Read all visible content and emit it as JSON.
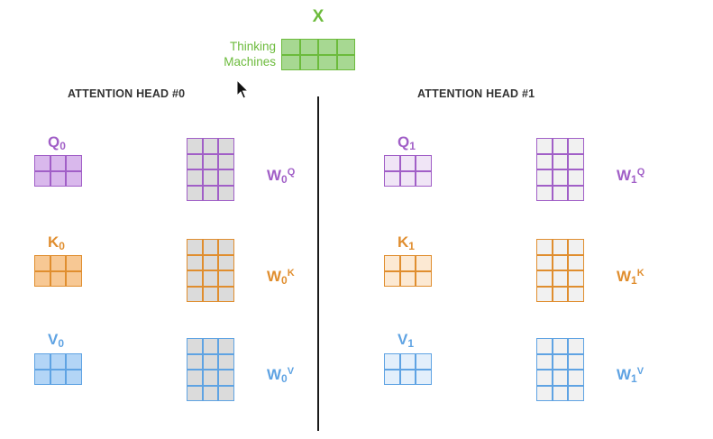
{
  "input": {
    "label": "X",
    "words": [
      "Thinking",
      "Machines"
    ],
    "color": "#6cbb3c",
    "fill": "#a7d892",
    "rows": 2,
    "cols": 4
  },
  "heads": [
    {
      "title": "ATTENTION HEAD #0",
      "index": "0",
      "weight_fill": "#dbdbdb",
      "outputs": [
        {
          "letter": "Q",
          "fill": "#d9b8ec",
          "color": "#a15fc7",
          "weight_sup": "Q"
        },
        {
          "letter": "K",
          "fill": "#f7c894",
          "color": "#e08e2f",
          "weight_sup": "K"
        },
        {
          "letter": "V",
          "fill": "#b3d5f6",
          "color": "#5fa3e3",
          "weight_sup": "V"
        }
      ]
    },
    {
      "title": "ATTENTION HEAD #1",
      "index": "1",
      "weight_fill": "#f1f1f1",
      "outputs": [
        {
          "letter": "Q",
          "fill": "#f0e5f6",
          "color": "#a15fc7",
          "weight_sup": "Q"
        },
        {
          "letter": "K",
          "fill": "#fce9d3",
          "color": "#e08e2f",
          "weight_sup": "K"
        },
        {
          "letter": "V",
          "fill": "#e3effb",
          "color": "#5fa3e3",
          "weight_sup": "V"
        }
      ]
    }
  ],
  "weight_label_letter": "W",
  "output_matrix": {
    "rows": 2,
    "cols": 3
  },
  "weight_matrix": {
    "rows": 4,
    "cols": 3
  }
}
